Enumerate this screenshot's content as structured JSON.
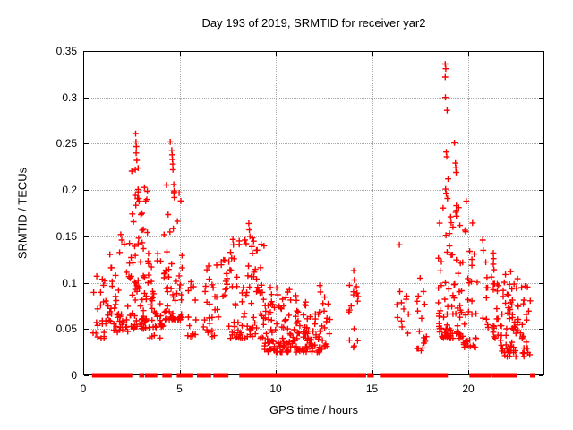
{
  "title": "Day 193 of 2019, SRMTID for receiver yar2",
  "axes": {
    "x_label": "GPS time / hours",
    "y_label": "SRMTID / TECUs"
  },
  "colors": {
    "marker": "#ff0000",
    "grid": "#a8a8a8",
    "axis": "#000000",
    "background": "#ffffff",
    "text": "#000000"
  },
  "chart_data": {
    "type": "scatter",
    "title": "Day 193 of 2019, SRMTID for receiver yar2",
    "xlabel": "GPS time / hours",
    "ylabel": "SRMTID / TECUs",
    "xlim": [
      0,
      23.95
    ],
    "ylim": [
      0,
      0.35
    ],
    "xticks": [
      0,
      5,
      10,
      15,
      20
    ],
    "yticks": [
      0,
      0.05,
      0.1,
      0.15,
      0.2,
      0.25,
      0.3,
      0.35
    ],
    "grid": true,
    "legend": "none",
    "marker": "plus",
    "marker_color": "#ff0000",
    "notable_points": [
      [
        0.7,
        0.107
      ],
      [
        1.95,
        0.152
      ],
      [
        2.0,
        0.146
      ],
      [
        2.72,
        0.261
      ],
      [
        2.74,
        0.252
      ],
      [
        2.76,
        0.247
      ],
      [
        2.75,
        0.24
      ],
      [
        2.78,
        0.232
      ],
      [
        2.85,
        0.198
      ],
      [
        2.9,
        0.188
      ],
      [
        3.05,
        0.175
      ],
      [
        4.52,
        0.252
      ],
      [
        4.6,
        0.243
      ],
      [
        4.62,
        0.238
      ],
      [
        4.63,
        0.233
      ],
      [
        4.65,
        0.228
      ],
      [
        4.66,
        0.222
      ],
      [
        4.7,
        0.206
      ],
      [
        4.72,
        0.199
      ],
      [
        4.73,
        0.192
      ],
      [
        5.6,
        0.101
      ],
      [
        7.8,
        0.141
      ],
      [
        8.6,
        0.164
      ],
      [
        8.63,
        0.157
      ],
      [
        8.66,
        0.15
      ],
      [
        9.0,
        0.135
      ],
      [
        12.28,
        0.097
      ],
      [
        12.32,
        0.09
      ],
      [
        14.05,
        0.113
      ],
      [
        14.08,
        0.103
      ],
      [
        16.42,
        0.141
      ],
      [
        17.5,
        0.105
      ],
      [
        18.8,
        0.336
      ],
      [
        18.83,
        0.331
      ],
      [
        18.8,
        0.322
      ],
      [
        18.81,
        0.3
      ],
      [
        18.9,
        0.286
      ],
      [
        19.28,
        0.251
      ],
      [
        18.86,
        0.241
      ],
      [
        18.88,
        0.236
      ],
      [
        19.33,
        0.229
      ],
      [
        19.35,
        0.224
      ],
      [
        19.37,
        0.219
      ],
      [
        18.95,
        0.212
      ],
      [
        18.82,
        0.201
      ],
      [
        18.86,
        0.196
      ],
      [
        18.92,
        0.191
      ],
      [
        19.9,
        0.188
      ],
      [
        20.75,
        0.146
      ],
      [
        20.78,
        0.135
      ],
      [
        21.3,
        0.132
      ],
      [
        21.31,
        0.126
      ],
      [
        21.3,
        0.12
      ],
      [
        21.33,
        0.114
      ],
      [
        22.2,
        0.112
      ]
    ],
    "clusters": [
      {
        "x": [
          0.5,
          1.3
        ],
        "y": [
          0.04,
          0.105
        ],
        "n": 24,
        "skew": 1.5
      },
      {
        "x": [
          1.3,
          2.45
        ],
        "y": [
          0.045,
          0.15
        ],
        "n": 46,
        "skew": 1.7
      },
      {
        "x": [
          2.45,
          3.35
        ],
        "y": [
          0.05,
          0.225
        ],
        "n": 72,
        "skew": 2.0
      },
      {
        "x": [
          3.35,
          4.2
        ],
        "y": [
          0.04,
          0.135
        ],
        "n": 40,
        "skew": 1.5
      },
      {
        "x": [
          4.2,
          5.15
        ],
        "y": [
          0.06,
          0.215
        ],
        "n": 58,
        "skew": 1.9
      },
      {
        "x": [
          5.4,
          5.9
        ],
        "y": [
          0.04,
          0.1
        ],
        "n": 12,
        "skew": 1.4
      },
      {
        "x": [
          6.2,
          7.4
        ],
        "y": [
          0.04,
          0.125
        ],
        "n": 34,
        "skew": 1.5
      },
      {
        "x": [
          7.4,
          9.4
        ],
        "y": [
          0.04,
          0.15
        ],
        "n": 88,
        "skew": 1.8
      },
      {
        "x": [
          9.4,
          11.1
        ],
        "y": [
          0.025,
          0.095
        ],
        "n": 95,
        "skew": 1.7
      },
      {
        "x": [
          11.1,
          12.45
        ],
        "y": [
          0.025,
          0.08
        ],
        "n": 70,
        "skew": 1.6
      },
      {
        "x": [
          12.5,
          12.85
        ],
        "y": [
          0.03,
          0.085
        ],
        "n": 12,
        "skew": 1.4
      },
      {
        "x": [
          13.8,
          14.35
        ],
        "y": [
          0.03,
          0.1
        ],
        "n": 15,
        "skew": 1.3
      },
      {
        "x": [
          16.3,
          16.9
        ],
        "y": [
          0.045,
          0.098
        ],
        "n": 11,
        "skew": 1.2
      },
      {
        "x": [
          17.3,
          17.85
        ],
        "y": [
          0.022,
          0.098
        ],
        "n": 15,
        "skew": 1.2
      },
      {
        "x": [
          18.45,
          19.6
        ],
        "y": [
          0.04,
          0.185
        ],
        "n": 78,
        "skew": 1.9
      },
      {
        "x": [
          19.6,
          20.45
        ],
        "y": [
          0.03,
          0.165
        ],
        "n": 38,
        "skew": 1.8
      },
      {
        "x": [
          20.7,
          21.05
        ],
        "y": [
          0.05,
          0.125
        ],
        "n": 9,
        "skew": 1.3
      },
      {
        "x": [
          21.2,
          21.5
        ],
        "y": [
          0.04,
          0.108
        ],
        "n": 12,
        "skew": 1.3
      },
      {
        "x": [
          21.5,
          23.25
        ],
        "y": [
          0.02,
          0.112
        ],
        "n": 88,
        "skew": 1.6
      }
    ],
    "zero_value_segments": [
      [
        0.55,
        0.75
      ],
      [
        0.8,
        0.85
      ],
      [
        0.9,
        1.1
      ],
      [
        1.15,
        1.45
      ],
      [
        1.5,
        1.65
      ],
      [
        1.75,
        2.0
      ],
      [
        2.1,
        2.45
      ],
      [
        3.0,
        3.08
      ],
      [
        3.3,
        3.42
      ],
      [
        3.55,
        3.6
      ],
      [
        3.7,
        3.75
      ],
      [
        4.2,
        4.5
      ],
      [
        4.95,
        5.5
      ],
      [
        5.55,
        5.62
      ],
      [
        6.0,
        6.55
      ],
      [
        6.85,
        7.0
      ],
      [
        7.15,
        7.45
      ],
      [
        8.2,
        8.35
      ],
      [
        8.45,
        8.55
      ],
      [
        8.6,
        8.75
      ],
      [
        8.85,
        9.1
      ],
      [
        9.2,
        9.35
      ],
      [
        9.45,
        9.55
      ],
      [
        9.6,
        10.1
      ],
      [
        10.2,
        10.65
      ],
      [
        10.75,
        10.85
      ],
      [
        10.9,
        11.3
      ],
      [
        11.45,
        12.2
      ],
      [
        12.3,
        12.75
      ],
      [
        12.85,
        13.1
      ],
      [
        13.2,
        13.7
      ],
      [
        13.8,
        14.3
      ],
      [
        14.45,
        14.6
      ],
      [
        14.85,
        15.0
      ],
      [
        15.5,
        15.65
      ],
      [
        15.75,
        16.2
      ],
      [
        16.3,
        17.25
      ],
      [
        17.35,
        18.0
      ],
      [
        18.05,
        18.85
      ],
      [
        20.15,
        20.35
      ],
      [
        20.45,
        20.55
      ],
      [
        20.65,
        20.8
      ],
      [
        20.9,
        21.1
      ],
      [
        21.3,
        21.75
      ],
      [
        21.85,
        22.2
      ],
      [
        22.35,
        22.45
      ],
      [
        23.3,
        23.35
      ]
    ]
  }
}
